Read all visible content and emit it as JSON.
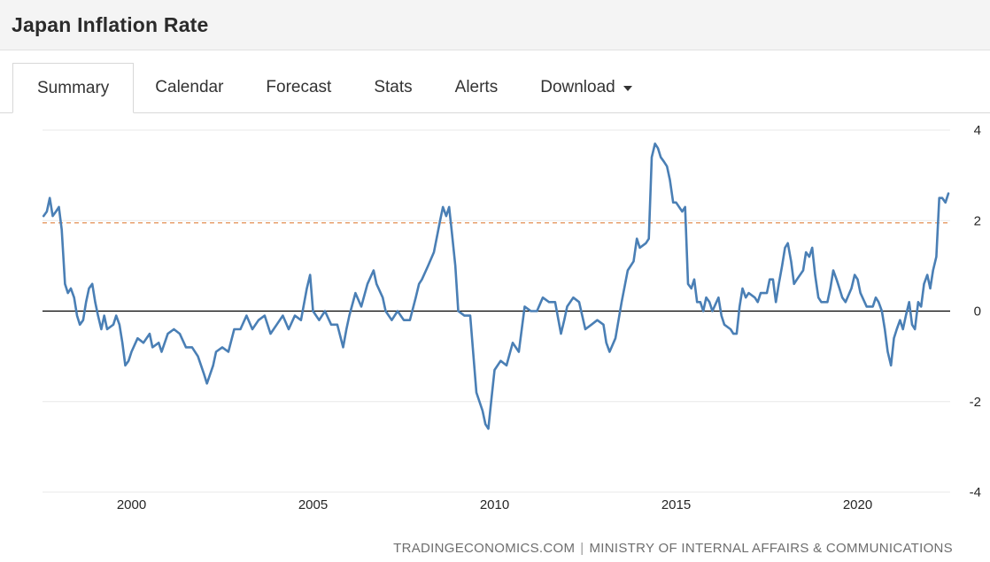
{
  "header": {
    "title": "Japan Inflation Rate"
  },
  "tabs": {
    "items": [
      {
        "label": "Summary",
        "active": true
      },
      {
        "label": "Calendar",
        "active": false
      },
      {
        "label": "Forecast",
        "active": false
      },
      {
        "label": "Stats",
        "active": false
      },
      {
        "label": "Alerts",
        "active": false
      },
      {
        "label": "Download",
        "active": false,
        "has_caret": true
      }
    ]
  },
  "footer": {
    "source": "TRADINGECONOMICS.COM",
    "separator": "|",
    "attribution": "MINISTRY OF INTERNAL AFFAIRS & COMMUNICATIONS"
  },
  "chart_data": {
    "type": "line",
    "title": "Japan Inflation Rate",
    "xlabel": "",
    "ylabel": "",
    "xlim": [
      1997.55,
      2022.55
    ],
    "ylim": [
      -4,
      4
    ],
    "yticks": [
      4,
      2,
      0,
      -2,
      -4
    ],
    "xticks": [
      2000,
      2005,
      2010,
      2015,
      2020
    ],
    "grid": "horizontal",
    "legend_position": "none",
    "zero_line": 0,
    "reference_line": {
      "value": 1.95,
      "color": "#e0813f",
      "style": "dashed"
    },
    "series": [
      {
        "name": "Japan Inflation Rate (%, YoY)",
        "color": "#4a7fb5",
        "points": [
          [
            1997.58,
            2.1
          ],
          [
            1997.67,
            2.2
          ],
          [
            1997.75,
            2.5
          ],
          [
            1997.83,
            2.1
          ],
          [
            1997.92,
            2.2
          ],
          [
            1998.0,
            2.3
          ],
          [
            1998.08,
            1.8
          ],
          [
            1998.17,
            0.6
          ],
          [
            1998.25,
            0.4
          ],
          [
            1998.33,
            0.5
          ],
          [
            1998.42,
            0.3
          ],
          [
            1998.5,
            -0.1
          ],
          [
            1998.58,
            -0.3
          ],
          [
            1998.67,
            -0.2
          ],
          [
            1998.75,
            0.2
          ],
          [
            1998.83,
            0.5
          ],
          [
            1998.92,
            0.6
          ],
          [
            1999.0,
            0.2
          ],
          [
            1999.08,
            -0.1
          ],
          [
            1999.17,
            -0.4
          ],
          [
            1999.25,
            -0.1
          ],
          [
            1999.33,
            -0.4
          ],
          [
            1999.5,
            -0.3
          ],
          [
            1999.58,
            -0.1
          ],
          [
            1999.67,
            -0.3
          ],
          [
            1999.75,
            -0.7
          ],
          [
            1999.83,
            -1.2
          ],
          [
            1999.92,
            -1.1
          ],
          [
            2000.0,
            -0.9
          ],
          [
            2000.17,
            -0.6
          ],
          [
            2000.33,
            -0.7
          ],
          [
            2000.5,
            -0.5
          ],
          [
            2000.58,
            -0.8
          ],
          [
            2000.75,
            -0.7
          ],
          [
            2000.83,
            -0.9
          ],
          [
            2001.0,
            -0.5
          ],
          [
            2001.17,
            -0.4
          ],
          [
            2001.33,
            -0.5
          ],
          [
            2001.5,
            -0.8
          ],
          [
            2001.67,
            -0.8
          ],
          [
            2001.83,
            -1.0
          ],
          [
            2002.0,
            -1.4
          ],
          [
            2002.08,
            -1.6
          ],
          [
            2002.25,
            -1.2
          ],
          [
            2002.33,
            -0.9
          ],
          [
            2002.5,
            -0.8
          ],
          [
            2002.67,
            -0.9
          ],
          [
            2002.83,
            -0.4
          ],
          [
            2003.0,
            -0.4
          ],
          [
            2003.17,
            -0.1
          ],
          [
            2003.33,
            -0.4
          ],
          [
            2003.5,
            -0.2
          ],
          [
            2003.67,
            -0.1
          ],
          [
            2003.83,
            -0.5
          ],
          [
            2004.0,
            -0.3
          ],
          [
            2004.17,
            -0.1
          ],
          [
            2004.33,
            -0.4
          ],
          [
            2004.5,
            -0.1
          ],
          [
            2004.67,
            -0.2
          ],
          [
            2004.83,
            0.5
          ],
          [
            2004.92,
            0.8
          ],
          [
            2005.0,
            0.0
          ],
          [
            2005.17,
            -0.2
          ],
          [
            2005.33,
            0.0
          ],
          [
            2005.5,
            -0.3
          ],
          [
            2005.67,
            -0.3
          ],
          [
            2005.83,
            -0.8
          ],
          [
            2005.92,
            -0.4
          ],
          [
            2006.0,
            -0.1
          ],
          [
            2006.17,
            0.4
          ],
          [
            2006.33,
            0.1
          ],
          [
            2006.5,
            0.6
          ],
          [
            2006.67,
            0.9
          ],
          [
            2006.75,
            0.6
          ],
          [
            2006.92,
            0.3
          ],
          [
            2007.0,
            0.0
          ],
          [
            2007.17,
            -0.2
          ],
          [
            2007.33,
            0.0
          ],
          [
            2007.5,
            -0.2
          ],
          [
            2007.67,
            -0.2
          ],
          [
            2007.83,
            0.3
          ],
          [
            2007.92,
            0.6
          ],
          [
            2008.0,
            0.7
          ],
          [
            2008.17,
            1.0
          ],
          [
            2008.33,
            1.3
          ],
          [
            2008.5,
            2.0
          ],
          [
            2008.58,
            2.3
          ],
          [
            2008.67,
            2.1
          ],
          [
            2008.75,
            2.3
          ],
          [
            2008.83,
            1.7
          ],
          [
            2008.92,
            1.0
          ],
          [
            2009.0,
            0.0
          ],
          [
            2009.17,
            -0.1
          ],
          [
            2009.33,
            -0.1
          ],
          [
            2009.42,
            -1.0
          ],
          [
            2009.5,
            -1.8
          ],
          [
            2009.67,
            -2.2
          ],
          [
            2009.75,
            -2.5
          ],
          [
            2009.83,
            -2.6
          ],
          [
            2009.92,
            -1.9
          ],
          [
            2010.0,
            -1.3
          ],
          [
            2010.17,
            -1.1
          ],
          [
            2010.33,
            -1.2
          ],
          [
            2010.5,
            -0.7
          ],
          [
            2010.67,
            -0.9
          ],
          [
            2010.83,
            0.1
          ],
          [
            2011.0,
            0.0
          ],
          [
            2011.17,
            0.0
          ],
          [
            2011.33,
            0.3
          ],
          [
            2011.5,
            0.2
          ],
          [
            2011.67,
            0.2
          ],
          [
            2011.83,
            -0.5
          ],
          [
            2011.92,
            -0.2
          ],
          [
            2012.0,
            0.1
          ],
          [
            2012.17,
            0.3
          ],
          [
            2012.33,
            0.2
          ],
          [
            2012.5,
            -0.4
          ],
          [
            2012.67,
            -0.3
          ],
          [
            2012.83,
            -0.2
          ],
          [
            2013.0,
            -0.3
          ],
          [
            2013.08,
            -0.7
          ],
          [
            2013.17,
            -0.9
          ],
          [
            2013.33,
            -0.6
          ],
          [
            2013.5,
            0.2
          ],
          [
            2013.67,
            0.9
          ],
          [
            2013.83,
            1.1
          ],
          [
            2013.92,
            1.6
          ],
          [
            2014.0,
            1.4
          ],
          [
            2014.17,
            1.5
          ],
          [
            2014.25,
            1.6
          ],
          [
            2014.33,
            3.4
          ],
          [
            2014.42,
            3.7
          ],
          [
            2014.5,
            3.6
          ],
          [
            2014.58,
            3.4
          ],
          [
            2014.67,
            3.3
          ],
          [
            2014.75,
            3.2
          ],
          [
            2014.83,
            2.9
          ],
          [
            2014.92,
            2.4
          ],
          [
            2015.0,
            2.4
          ],
          [
            2015.17,
            2.2
          ],
          [
            2015.25,
            2.3
          ],
          [
            2015.33,
            0.6
          ],
          [
            2015.42,
            0.5
          ],
          [
            2015.5,
            0.7
          ],
          [
            2015.58,
            0.2
          ],
          [
            2015.67,
            0.2
          ],
          [
            2015.75,
            0.0
          ],
          [
            2015.83,
            0.3
          ],
          [
            2015.92,
            0.2
          ],
          [
            2016.0,
            0.0
          ],
          [
            2016.17,
            0.3
          ],
          [
            2016.25,
            -0.1
          ],
          [
            2016.33,
            -0.3
          ],
          [
            2016.5,
            -0.4
          ],
          [
            2016.58,
            -0.5
          ],
          [
            2016.67,
            -0.5
          ],
          [
            2016.75,
            0.1
          ],
          [
            2016.83,
            0.5
          ],
          [
            2016.92,
            0.3
          ],
          [
            2017.0,
            0.4
          ],
          [
            2017.17,
            0.3
          ],
          [
            2017.25,
            0.2
          ],
          [
            2017.33,
            0.4
          ],
          [
            2017.5,
            0.4
          ],
          [
            2017.58,
            0.7
          ],
          [
            2017.67,
            0.7
          ],
          [
            2017.75,
            0.2
          ],
          [
            2017.83,
            0.6
          ],
          [
            2017.92,
            1.0
          ],
          [
            2018.0,
            1.4
          ],
          [
            2018.08,
            1.5
          ],
          [
            2018.17,
            1.1
          ],
          [
            2018.25,
            0.6
          ],
          [
            2018.33,
            0.7
          ],
          [
            2018.5,
            0.9
          ],
          [
            2018.58,
            1.3
          ],
          [
            2018.67,
            1.2
          ],
          [
            2018.75,
            1.4
          ],
          [
            2018.83,
            0.8
          ],
          [
            2018.92,
            0.3
          ],
          [
            2019.0,
            0.2
          ],
          [
            2019.17,
            0.2
          ],
          [
            2019.25,
            0.5
          ],
          [
            2019.33,
            0.9
          ],
          [
            2019.42,
            0.7
          ],
          [
            2019.5,
            0.5
          ],
          [
            2019.58,
            0.3
          ],
          [
            2019.67,
            0.2
          ],
          [
            2019.83,
            0.5
          ],
          [
            2019.92,
            0.8
          ],
          [
            2020.0,
            0.7
          ],
          [
            2020.08,
            0.4
          ],
          [
            2020.25,
            0.1
          ],
          [
            2020.42,
            0.1
          ],
          [
            2020.5,
            0.3
          ],
          [
            2020.58,
            0.2
          ],
          [
            2020.67,
            0.0
          ],
          [
            2020.75,
            -0.4
          ],
          [
            2020.83,
            -0.9
          ],
          [
            2020.92,
            -1.2
          ],
          [
            2021.0,
            -0.6
          ],
          [
            2021.08,
            -0.4
          ],
          [
            2021.17,
            -0.2
          ],
          [
            2021.25,
            -0.4
          ],
          [
            2021.33,
            -0.1
          ],
          [
            2021.42,
            0.2
          ],
          [
            2021.5,
            -0.3
          ],
          [
            2021.58,
            -0.4
          ],
          [
            2021.67,
            0.2
          ],
          [
            2021.75,
            0.1
          ],
          [
            2021.83,
            0.6
          ],
          [
            2021.92,
            0.8
          ],
          [
            2022.0,
            0.5
          ],
          [
            2022.08,
            0.9
          ],
          [
            2022.17,
            1.2
          ],
          [
            2022.25,
            2.5
          ],
          [
            2022.33,
            2.5
          ],
          [
            2022.42,
            2.4
          ],
          [
            2022.5,
            2.6
          ]
        ]
      }
    ]
  }
}
